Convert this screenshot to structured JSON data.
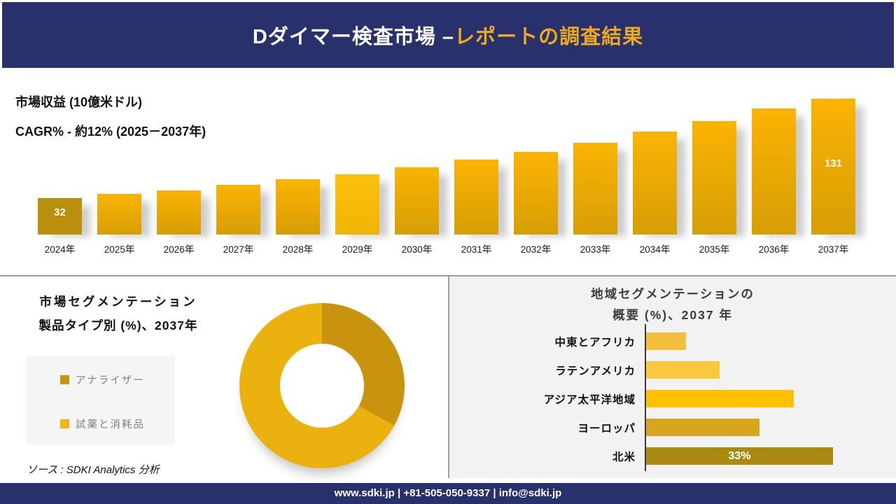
{
  "colors": {
    "navy": "#28316B",
    "gold_title": "#EDA920",
    "panel_gray": "#F2F2F2",
    "divider_gray": "#9E9E9E",
    "legend_bg": "#F5F5F5"
  },
  "header": {
    "title_white": "Dダイマー検査市場 –",
    "title_gold": "レポートの調査結果"
  },
  "revenue_section": {
    "metric_label": "市場収益 (10億米ドル)",
    "cagr_label": "CAGR% - 約12% (2025－2037年)"
  },
  "product_section": {
    "title_line1": "市場セグメンテーション",
    "title_line2": "製品タイプ別 (%)、2037年",
    "legend": [
      {
        "label": "アナライザー",
        "color": "#C8960C"
      },
      {
        "label": "試薬と消耗品",
        "color": "#F0B514"
      }
    ],
    "source": "ソース : SDKI Analytics 分析"
  },
  "region_section": {
    "title_line1": "地域セグメンテーションの",
    "title_line2": "概要 (%)、2037 年"
  },
  "footer": {
    "text": "www.sdki.jp | +81-505-050-9337 | info@sdki.jp"
  },
  "chart_data": [
    {
      "type": "bar",
      "title": "市場収益 (10億米ドル)",
      "subtitle": "CAGR% - 約12% (2025－2037年)",
      "categories": [
        "2024年",
        "2025年",
        "2026年",
        "2027年",
        "2028年",
        "2029年",
        "2030年",
        "2031年",
        "2032年",
        "2033年",
        "2034年",
        "2035年",
        "2036年",
        "2037年"
      ],
      "values": [
        32,
        36,
        40,
        45,
        51,
        56,
        63,
        70,
        78,
        87,
        98,
        109,
        121,
        131
      ],
      "value_labels": {
        "0": "32",
        "13": "131"
      },
      "ylabel": "10億米ドル",
      "xlabel": "",
      "grid": false,
      "legend_position": "none",
      "bar_styles": {
        "default": [
          "#FBB303",
          "#D69E05"
        ],
        "0": [
          "#B8900D"
        ],
        "5": [
          "#FFC110",
          "#EFB403"
        ]
      }
    },
    {
      "type": "pie",
      "donut": true,
      "title": "市場セグメンテーション 製品タイプ別 (%)、2037年",
      "labels": [
        "アナライザー",
        "試薬と消耗品"
      ],
      "values": [
        33,
        67
      ],
      "colors": [
        "#C8940E",
        "#EBB10F"
      ],
      "legend_position": "left"
    },
    {
      "type": "bar",
      "orientation": "horizontal",
      "title": "地域セグメンテーションの概要 (%)、2037 年",
      "categories": [
        "中東とアフリカ",
        "ラテンアメリカ",
        "アジア太平洋地域",
        "ヨーロッパ",
        "北米"
      ],
      "values": [
        7,
        13,
        26,
        20,
        33
      ],
      "value_labels": {
        "4": "33%"
      },
      "colors": [
        "#F2BE3C",
        "#F9C83E",
        "#FFC000",
        "#D9A521",
        "#AA8A10"
      ],
      "grid": false
    }
  ]
}
